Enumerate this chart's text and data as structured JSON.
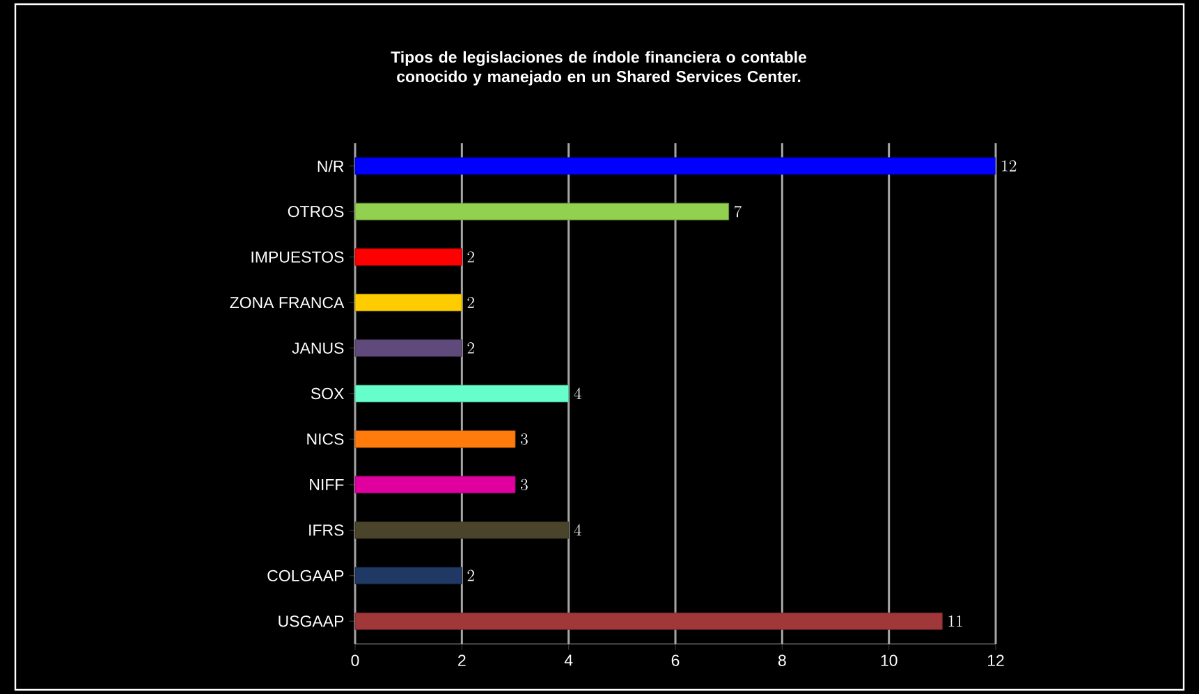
{
  "chart_data": {
    "type": "bar",
    "orientation": "horizontal",
    "title": "Tipos de legislaciones de índole financiera o contable conocido y manejado en un Shared Services Center.",
    "categories": [
      "N/R",
      "OTROS",
      "IMPUESTOS",
      "ZONA FRANCA",
      "JANUS",
      "SOX",
      "NICS",
      "NIFF",
      "IFRS",
      "COLGAAP",
      "USGAAP"
    ],
    "values": [
      12,
      7,
      2,
      2,
      2,
      4,
      3,
      3,
      4,
      2,
      11
    ],
    "colors": [
      "#0000ff",
      "#92d050",
      "#ff0000",
      "#ffcc00",
      "#604a7b",
      "#66ffcc",
      "#ff7c0c",
      "#e000a0",
      "#4a452a",
      "#1f3864",
      "#a0383a"
    ],
    "xlim": [
      0,
      12
    ],
    "xticks": [
      0,
      2,
      4,
      6,
      8,
      10,
      12
    ],
    "grid": "x",
    "data_labels": true
  }
}
